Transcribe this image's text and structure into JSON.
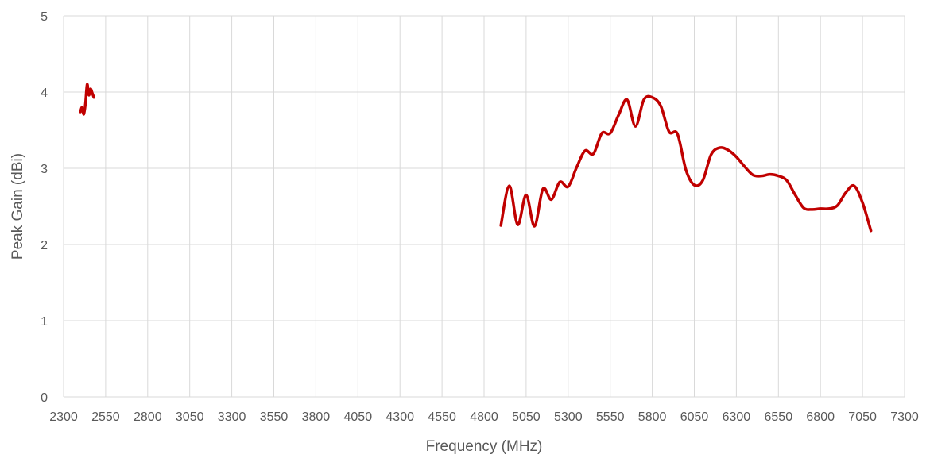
{
  "chart_data": {
    "type": "line",
    "title": "",
    "xlabel": "Frequency (MHz)",
    "ylabel": "Peak Gain (dBi)",
    "xlim": [
      2300,
      7300
    ],
    "ylim": [
      0,
      5
    ],
    "x_ticks": [
      2300,
      2550,
      2800,
      3050,
      3300,
      3550,
      3800,
      4050,
      4300,
      4550,
      4800,
      5050,
      5300,
      5550,
      5800,
      6050,
      6300,
      6550,
      6800,
      7050,
      7300
    ],
    "y_ticks": [
      0,
      1,
      2,
      3,
      4,
      5
    ],
    "grid": "vertical and horizontal",
    "legend": "none",
    "line_color": "#c00000",
    "grid_color": "#d9d9d9",
    "series": [
      {
        "segments": [
          {
            "x": [
              2400,
              2410,
              2420,
              2430,
              2440,
              2450,
              2460,
              2470,
              2480
            ],
            "y": [
              3.74,
              3.8,
              3.71,
              3.85,
              4.1,
              3.96,
              4.04,
              3.99,
              3.93
            ]
          },
          {
            "x": [
              4900,
              4950,
              5000,
              5050,
              5100,
              5150,
              5200,
              5250,
              5300,
              5350,
              5400,
              5450,
              5500,
              5550,
              5600,
              5650,
              5700,
              5750,
              5800,
              5850,
              5900,
              5950,
              6000,
              6050,
              6100,
              6150,
              6200,
              6250,
              6300,
              6350,
              6400,
              6450,
              6500,
              6550,
              6600,
              6650,
              6700,
              6750,
              6800,
              6850,
              6900,
              6950,
              7000,
              7050,
              7100
            ],
            "y": [
              2.25,
              2.77,
              2.26,
              2.65,
              2.24,
              2.73,
              2.59,
              2.82,
              2.76,
              3.01,
              3.23,
              3.19,
              3.46,
              3.46,
              3.7,
              3.9,
              3.55,
              3.9,
              3.93,
              3.82,
              3.48,
              3.45,
              2.98,
              2.78,
              2.84,
              3.18,
              3.27,
              3.24,
              3.15,
              3.02,
              2.91,
              2.9,
              2.92,
              2.9,
              2.84,
              2.65,
              2.48,
              2.46,
              2.47,
              2.47,
              2.51,
              2.68,
              2.77,
              2.55,
              2.18
            ]
          }
        ]
      }
    ]
  }
}
